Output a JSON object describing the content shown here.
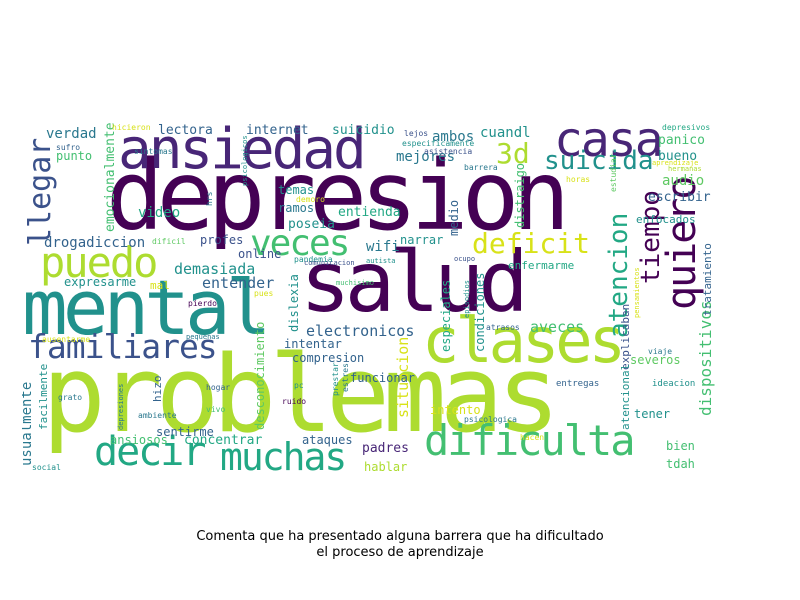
{
  "colors": {
    "dark_purple": "#440154",
    "purple": "#482677",
    "indigo": "#3b528b",
    "blue": "#33638d",
    "teal_blue": "#2a788e",
    "teal": "#21918c",
    "green_teal": "#22a884",
    "green": "#43bf71",
    "light_green": "#5ec962",
    "yellow_green": "#addc30",
    "yellow": "#d8e219"
  },
  "caption": {
    "line1": "Comenta que ha presentado alguna barrera que ha dificultado",
    "line2": "el proceso de aprendizaje"
  },
  "words": [
    {
      "text": "depresion",
      "color": "dark_purple"
    },
    {
      "text": "problemas",
      "color": "yellow_green"
    },
    {
      "text": "salud",
      "color": "dark_purple"
    },
    {
      "text": "mental",
      "color": "teal"
    },
    {
      "text": "ansiedad",
      "color": "purple"
    },
    {
      "text": "clases",
      "color": "yellow_green"
    },
    {
      "text": "dificulta",
      "color": "green"
    },
    {
      "text": "muchas",
      "color": "green_teal"
    },
    {
      "text": "decir",
      "color": "green_teal"
    },
    {
      "text": "casa",
      "color": "purple"
    },
    {
      "text": "puedo",
      "color": "yellow_green"
    },
    {
      "text": "familiares",
      "color": "indigo"
    },
    {
      "text": "veces",
      "color": "green"
    },
    {
      "text": "quiero",
      "color": "dark_purple"
    },
    {
      "text": "deficit",
      "color": "yellow"
    },
    {
      "text": "suicida",
      "color": "teal"
    },
    {
      "text": "tiempo",
      "color": "dark_purple"
    },
    {
      "text": "atencion",
      "color": "green_teal"
    },
    {
      "text": "3d",
      "color": "yellow_green"
    },
    {
      "text": "llegar",
      "color": "indigo"
    },
    {
      "text": "dispositivos",
      "color": "green"
    },
    {
      "text": "electronicos",
      "color": "blue"
    },
    {
      "text": "aveces",
      "color": "green"
    },
    {
      "text": "entender",
      "color": "blue"
    },
    {
      "text": "demasiada",
      "color": "teal"
    },
    {
      "text": "drogadiccion",
      "color": "blue"
    },
    {
      "text": "situacion",
      "color": "yellow"
    },
    {
      "text": "usualmente",
      "color": "teal_blue"
    },
    {
      "text": "verdad",
      "color": "teal_blue"
    },
    {
      "text": "lectora",
      "color": "blue"
    },
    {
      "text": "internet",
      "color": "blue"
    },
    {
      "text": "suicidio",
      "color": "teal"
    },
    {
      "text": "ambos",
      "color": "teal_blue"
    },
    {
      "text": "cuandl",
      "color": "teal"
    },
    {
      "text": "mejores",
      "color": "teal_blue"
    },
    {
      "text": "bueno",
      "color": "teal"
    },
    {
      "text": "panico",
      "color": "green"
    },
    {
      "text": "audio",
      "color": "light_green"
    },
    {
      "text": "escribir",
      "color": "blue"
    },
    {
      "text": "video",
      "color": "green_teal"
    },
    {
      "text": "punto",
      "color": "green"
    },
    {
      "text": "emocionalmente",
      "color": "green"
    },
    {
      "text": "temas",
      "color": "teal"
    },
    {
      "text": "ramos",
      "color": "teal_blue"
    },
    {
      "text": "poseia",
      "color": "teal"
    },
    {
      "text": "profes",
      "color": "indigo"
    },
    {
      "text": "online",
      "color": "indigo"
    },
    {
      "text": "entienda",
      "color": "green_teal"
    },
    {
      "text": "wifi",
      "color": "teal_blue"
    },
    {
      "text": "narrar",
      "color": "teal"
    },
    {
      "text": "medio",
      "color": "blue"
    },
    {
      "text": "distraigo",
      "color": "green"
    },
    {
      "text": "enfermarme",
      "color": "green_teal"
    },
    {
      "text": "especiales",
      "color": "green_teal"
    },
    {
      "text": "condiciones",
      "color": "teal"
    },
    {
      "text": "explicaban",
      "color": "indigo"
    },
    {
      "text": "enfocados",
      "color": "teal"
    },
    {
      "text": "tratamiento",
      "color": "blue"
    },
    {
      "text": "expresarme",
      "color": "teal"
    },
    {
      "text": "mal",
      "color": "yellow"
    },
    {
      "text": "dislexia",
      "color": "teal"
    },
    {
      "text": "desconocimiento",
      "color": "light_green"
    },
    {
      "text": "intentar",
      "color": "blue"
    },
    {
      "text": "compresion",
      "color": "blue"
    },
    {
      "text": "funcionar",
      "color": "blue"
    },
    {
      "text": "severos",
      "color": "light_green"
    },
    {
      "text": "intento",
      "color": "yellow"
    },
    {
      "text": "atencional",
      "color": "teal"
    },
    {
      "text": "tener",
      "color": "teal"
    },
    {
      "text": "bien",
      "color": "green"
    },
    {
      "text": "tdah",
      "color": "green"
    },
    {
      "text": "hizo",
      "color": "blue"
    },
    {
      "text": "sentirme",
      "color": "blue"
    },
    {
      "text": "ansiosos",
      "color": "green"
    },
    {
      "text": "concentrar",
      "color": "green_teal"
    },
    {
      "text": "ataques",
      "color": "blue"
    },
    {
      "text": "padres",
      "color": "purple"
    },
    {
      "text": "hablar",
      "color": "yellow_green"
    },
    {
      "text": "facilmente",
      "color": "teal"
    },
    {
      "text": "entregas",
      "color": "blue"
    },
    {
      "text": "ideacion",
      "color": "teal"
    },
    {
      "text": "hicieron",
      "color": "yellow"
    },
    {
      "text": "sufro",
      "color": "blue"
    },
    {
      "text": "psicologicos",
      "color": "teal"
    },
    {
      "text": "hrs",
      "color": "teal_blue"
    },
    {
      "text": "demoro",
      "color": "yellow"
    },
    {
      "text": "lejos",
      "color": "indigo"
    },
    {
      "text": "especificamente",
      "color": "teal"
    },
    {
      "text": "asistencia",
      "color": "indigo"
    },
    {
      "text": "barrera",
      "color": "teal_blue"
    },
    {
      "text": "horas",
      "color": "yellow"
    },
    {
      "text": "estudiar",
      "color": "light_green"
    },
    {
      "text": "depresivos",
      "color": "green_teal"
    },
    {
      "text": "sintomas",
      "color": "teal_blue"
    },
    {
      "text": "aprendizaje",
      "color": "yellow"
    },
    {
      "text": "hermanas",
      "color": "yellow_green"
    },
    {
      "text": "dificil",
      "color": "light_green"
    },
    {
      "text": "pandemia",
      "color": "teal"
    },
    {
      "text": "comunicacion",
      "color": "indigo"
    },
    {
      "text": "autista",
      "color": "teal"
    },
    {
      "text": "ocupo",
      "color": "indigo"
    },
    {
      "text": "muchisimo",
      "color": "green"
    },
    {
      "text": "episodios",
      "color": "teal"
    },
    {
      "text": "pensamientos",
      "color": "yellow"
    },
    {
      "text": "pues",
      "color": "yellow"
    },
    {
      "text": "pierdo",
      "color": "dark_purple"
    },
    {
      "text": "pequenas",
      "color": "teal_blue"
    },
    {
      "text": "ausentarme",
      "color": "yellow"
    },
    {
      "text": "atrasos",
      "color": "blue"
    },
    {
      "text": "viaje",
      "color": "teal_blue"
    },
    {
      "text": "hogar",
      "color": "blue"
    },
    {
      "text": "pc",
      "color": "teal"
    },
    {
      "text": "prestar",
      "color": "teal"
    },
    {
      "text": "estres",
      "color": "teal_blue"
    },
    {
      "text": "grato",
      "color": "teal_blue"
    },
    {
      "text": "depresiones",
      "color": "teal_blue"
    },
    {
      "text": "ambiente",
      "color": "teal_blue"
    },
    {
      "text": "vivo",
      "color": "green"
    },
    {
      "text": "ruido",
      "color": "dark_purple"
    },
    {
      "text": "psicologica",
      "color": "teal_blue"
    },
    {
      "text": "hacen",
      "color": "yellow"
    },
    {
      "text": "social",
      "color": "teal"
    }
  ]
}
